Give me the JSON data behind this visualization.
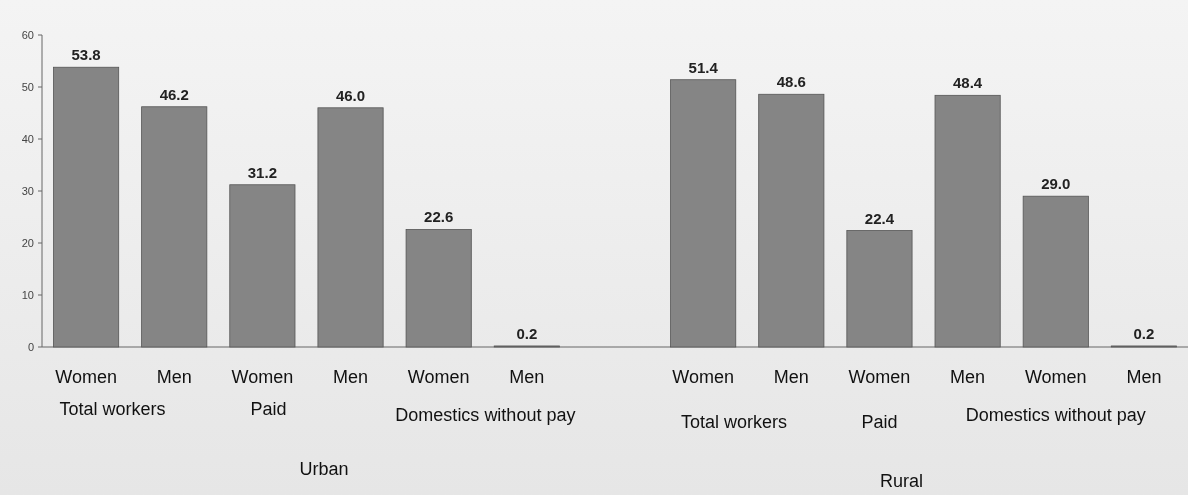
{
  "chart_data": {
    "type": "bar",
    "categories": [
      "Women",
      "Men",
      "Women",
      "Men",
      "Women",
      "Men",
      null,
      "Women",
      "Men",
      "Women",
      "Men",
      "Women",
      "Men"
    ],
    "values": [
      53.8,
      46.2,
      31.2,
      46.0,
      22.6,
      0.2,
      null,
      51.4,
      48.6,
      22.4,
      48.4,
      29.0,
      0.2
    ],
    "value_labels": [
      "53.8",
      "46.2",
      "31.2",
      "46.0",
      "22.6",
      "0.2",
      null,
      "51.4",
      "48.6",
      "22.4",
      "48.4",
      "29.0",
      "0.2"
    ],
    "color": "#858585",
    "ylim": [
      0,
      60
    ],
    "yticks": [
      0,
      10,
      20,
      30,
      40,
      50,
      60
    ],
    "annotations": [
      "Total workers",
      "Paid",
      "Domestics without pay",
      "Urban",
      "Total workers",
      "Paid",
      "Domestics without pay",
      "Rural"
    ]
  }
}
